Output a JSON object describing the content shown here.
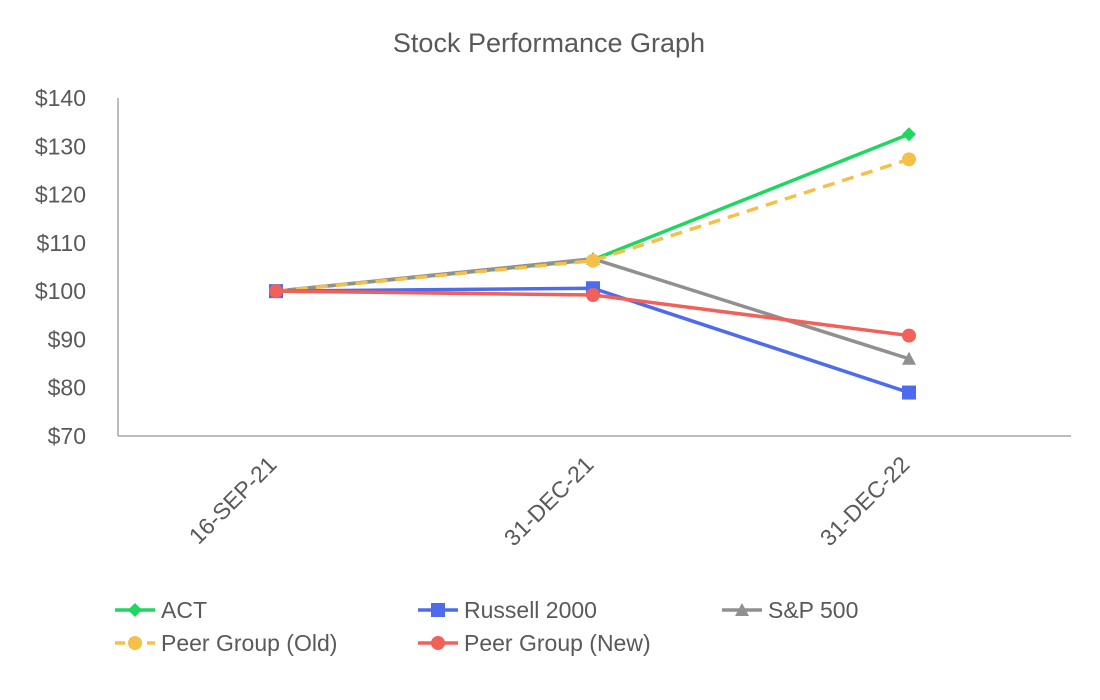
{
  "chart_data": {
    "type": "line",
    "title": "Stock Performance Graph",
    "xlabel": "",
    "ylabel": "",
    "categories": [
      "16-SEP-21",
      "31-DEC-21",
      "31-DEC-22"
    ],
    "y_tick_labels": [
      "$70",
      "$80",
      "$90",
      "$100",
      "$110",
      "$120",
      "$130",
      "$140"
    ],
    "y_ticks": [
      70,
      80,
      90,
      100,
      110,
      120,
      130,
      140
    ],
    "ylim": [
      70,
      140
    ],
    "grid": false,
    "legend_position": "bottom",
    "series": [
      {
        "name": "ACT",
        "values": [
          100,
          106.5,
          132.5
        ],
        "color": "#1ED760",
        "marker": "diamond",
        "dash": "solid"
      },
      {
        "name": "Russell 2000",
        "values": [
          100,
          100.6,
          79
        ],
        "color": "#4F6BED",
        "marker": "square",
        "dash": "solid"
      },
      {
        "name": "S&P 500",
        "values": [
          100,
          106.7,
          86
        ],
        "color": "#909090",
        "marker": "triangle",
        "dash": "solid"
      },
      {
        "name": "Peer Group (Old)",
        "values": [
          100,
          106.3,
          127.3
        ],
        "color": "#F5C04A",
        "marker": "circle",
        "dash": "dashed"
      },
      {
        "name": "Peer Group (New)",
        "values": [
          100,
          99.2,
          90.8
        ],
        "color": "#F2605A",
        "marker": "circle",
        "dash": "solid"
      }
    ]
  }
}
